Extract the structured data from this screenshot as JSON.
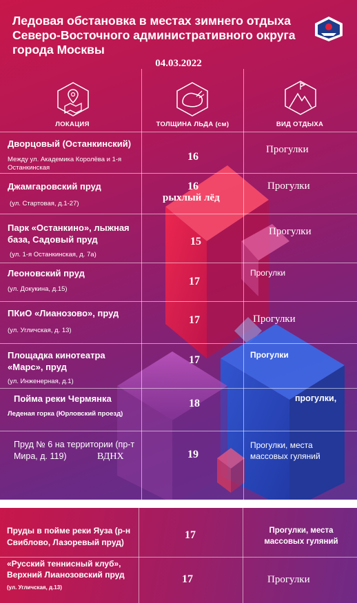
{
  "header": {
    "title": "Ледовая обстановка в местах зимнего отдыха Северо-Восточного административного округа города Москвы",
    "date": "04.03.2022"
  },
  "columns": {
    "location": "ЛОКАЦИЯ",
    "thickness": "ТОЛЩИНА ЛЬДА (см)",
    "activity": "ВИД ОТДЫХА"
  },
  "icons": {
    "location": "map-pin-icon",
    "thickness": "ice-hole-icon",
    "activity": "mountain-flag-icon",
    "logo": "sled-emblem-icon"
  },
  "rows": [
    {
      "name": "Дворцовый (Останкинский)",
      "address": "Между ул. Академика Королёва и 1-я Останкинская",
      "thickness": "16",
      "note": "",
      "activity": "Прогулки"
    },
    {
      "name": "Джамгаровский пруд",
      "address": "(ул. Стартовая, д.1-27)",
      "thickness": "16",
      "note": "рыхлый лёд",
      "activity": "Прогулки"
    },
    {
      "name": "Парк «Останкино», лыжная база, Садовый пруд",
      "address": "(ул. 1-я Останкинская, д. 7а)",
      "thickness": "15",
      "note": "",
      "activity": "Прогулки"
    },
    {
      "name": "Леоновский пруд",
      "address": "(ул. Докукина, д.15)",
      "thickness": "17",
      "note": "",
      "activity": "Прогулки"
    },
    {
      "name": "ПКиО «Лианозово», пруд",
      "address": "(ул. Угличская, д. 13)",
      "thickness": "17",
      "note": "",
      "activity": "Прогулки"
    },
    {
      "name": "Площадка кинотеатра «Марс», пруд",
      "address": "(ул. Инженерная, д.1)",
      "thickness": "17",
      "note": "",
      "activity": "Прогулки"
    },
    {
      "name": "Пойма реки Чермянка",
      "address": "Леденая горка (Юрловский проезд)",
      "thickness": "18",
      "note": "",
      "activity": "прогулки,"
    },
    {
      "name": "Пруд № 6 на территории (пр-т Мира, д. 119)",
      "name_extra": "ВДНХ",
      "address": "",
      "thickness": "19",
      "note": "",
      "activity": "Прогулки, места массовых гуляний"
    },
    {
      "name": "Пруды в пойме реки Яуза (р-н Свиблово, Лазоревый пруд)",
      "address": "",
      "thickness": "17",
      "note": "",
      "activity": "Прогулки, места массовых гуляний"
    },
    {
      "name": "«Русский теннисный клуб», Верхний Лианозовский пруд",
      "address": "(ул. Угличская, д.13)",
      "thickness": "17",
      "note": "",
      "activity": "Прогулки"
    }
  ]
}
